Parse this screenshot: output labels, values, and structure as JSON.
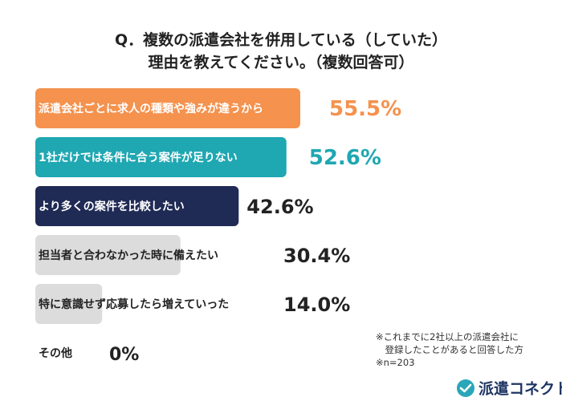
{
  "title": {
    "line1": "Q．複数の派遣会社を併用している（していた）",
    "line2": "理由を教えてください。（複数回答可）"
  },
  "chart_data": {
    "type": "bar",
    "orientation": "horizontal",
    "unit": "%",
    "categories": [
      "派遣会社ごとに求人の種類や強みが違うから",
      "1社だけでは条件に合う案件が足りない",
      "より多くの案件を比較したい",
      "担当者と合わなかった時に備えたい",
      "特に意識せず応募したら増えていった",
      "その他"
    ],
    "values": [
      55.5,
      52.6,
      42.6,
      30.4,
      14.0,
      0
    ],
    "value_labels": [
      "55.5%",
      "52.6%",
      "42.6%",
      "30.4%",
      "14.0%",
      "0%"
    ],
    "bar_colors": [
      "#f4924e",
      "#1fa7b2",
      "#1f2a55",
      "#dcdcdc",
      "#dcdcdc",
      "#dcdcdc"
    ],
    "label_colors": [
      "#ffffff",
      "#ffffff",
      "#ffffff",
      "#222222",
      "#222222",
      "#222222"
    ],
    "value_colors": [
      "#f4924e",
      "#1fa7b2",
      "#222222",
      "#222222",
      "#222222",
      "#222222"
    ]
  },
  "footnote": {
    "line1": "※これまでに2社以上の派遣会社に",
    "line2": "　登録したことがあると回答した方",
    "line3": "※n=203"
  },
  "brand": {
    "name": "派遣コネクト",
    "icon": "connect-logo-icon",
    "color": "#1f3563",
    "accent": "#29a6b8"
  }
}
